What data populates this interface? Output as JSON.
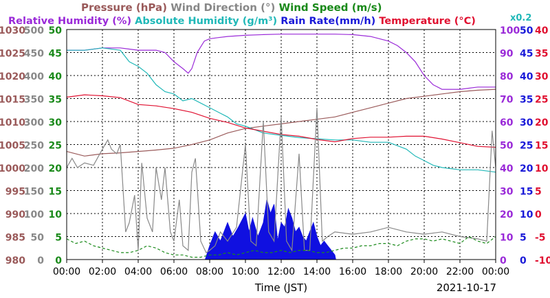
{
  "chart_data": {
    "type": "line",
    "date": "2021-10-17",
    "xlabel": "Time (JST)",
    "x_ticks": [
      "00:00",
      "02:00",
      "04:00",
      "06:00",
      "08:00",
      "10:00",
      "12:00",
      "14:00",
      "16:00",
      "18:00",
      "20:00",
      "22:00",
      "00:00"
    ],
    "grid": true,
    "header_row1": [
      {
        "text": "Pressure (hPa)",
        "color": "#9a5a5a"
      },
      {
        "text": "Wind Direction (°)",
        "color": "#888888"
      },
      {
        "text": "Wind Speed (m/s)",
        "color": "#1a8a1a"
      }
    ],
    "header_row2": [
      {
        "text": "Relative Humidity (%)",
        "color": "#9a2ad8"
      },
      {
        "text": "Absolute Humidity (g/m³)",
        "color": "#20b8b8"
      },
      {
        "text": "Rain Rate(mm/h)",
        "color": "#1a1ad8"
      },
      {
        "text": "Temperature (°C)",
        "color": "#e01030"
      },
      {
        "text": "x0.2",
        "color": "#20b8b8"
      }
    ],
    "axes": {
      "pressure": {
        "ticks": [
          "1030",
          "1025",
          "1020",
          "1015",
          "1010",
          "1005",
          "1000",
          "995",
          "990",
          "985",
          "980"
        ],
        "color": "#9a5a5a",
        "range": [
          980,
          1030
        ]
      },
      "wind_direction": {
        "ticks": [
          "500",
          "450",
          "400",
          "350",
          "300",
          "250",
          "200",
          "150",
          "100",
          "50",
          "0"
        ],
        "color": "#888888",
        "range": [
          0,
          500
        ]
      },
      "wind_speed": {
        "ticks": [
          "50",
          "45",
          "40",
          "35",
          "30",
          "25",
          "20",
          "15",
          "10",
          "5",
          "0"
        ],
        "color": "#1a8a1a",
        "range": [
          0,
          50
        ]
      },
      "humidity": {
        "ticks": [
          "100",
          "90",
          "80",
          "70",
          "60",
          "50",
          "40",
          "30",
          "20",
          "10",
          "0"
        ],
        "color": "#9a2ad8",
        "range": [
          0,
          100
        ]
      },
      "rain": {
        "ticks": [
          "50",
          "45",
          "40",
          "35",
          "30",
          "25",
          "20",
          "15",
          "10",
          "5",
          "0"
        ],
        "color": "#1a1ad8",
        "range": [
          0,
          50
        ]
      },
      "temperature": {
        "ticks": [
          "40",
          "35",
          "30",
          "25",
          "20",
          "15",
          "10",
          "5",
          "0",
          "-5",
          "-10"
        ],
        "color": "#e01030",
        "range": [
          -10,
          40
        ]
      }
    },
    "series": [
      {
        "name": "Pressure (hPa)",
        "color": "#9a5a5a",
        "x": [
          0,
          1,
          2,
          3,
          4,
          5,
          6,
          7,
          8,
          9,
          10,
          11,
          12,
          13,
          14,
          15,
          16,
          17,
          18,
          19,
          20,
          21,
          22,
          23,
          24
        ],
        "y": [
          1003.5,
          1002.5,
          1003,
          1003.2,
          1003.5,
          1003.8,
          1004.2,
          1005,
          1006,
          1007.5,
          1008.5,
          1009,
          1009.5,
          1010,
          1010.5,
          1011,
          1012,
          1013,
          1014,
          1015,
          1015.5,
          1016,
          1016.5,
          1016.8,
          1017
        ]
      },
      {
        "name": "Relative Humidity (%)",
        "color": "#9a2ad8",
        "x": [
          0,
          0.5,
          1,
          1.5,
          2,
          2.5,
          3,
          3.5,
          4,
          4.5,
          5,
          5.5,
          6,
          6.5,
          6.8,
          7,
          7.3,
          7.7,
          8,
          8.5,
          9,
          10,
          11,
          12,
          13,
          14,
          15,
          16,
          17,
          18,
          18.5,
          19,
          19.5,
          20,
          20.5,
          21,
          22,
          23,
          24
        ],
        "y": [
          91,
          91,
          91,
          91.5,
          92,
          92,
          92,
          91.5,
          91,
          91,
          91,
          90,
          86,
          83,
          81,
          83,
          90,
          95,
          96,
          96.5,
          97,
          97.5,
          97.8,
          98,
          98,
          98,
          98,
          97.8,
          97,
          95,
          93,
          90,
          86,
          80,
          76,
          74,
          74,
          75,
          75
        ]
      },
      {
        "name": "Absolute Humidity (g/m³)",
        "color": "#20b8b8",
        "x": [
          0,
          1,
          2,
          3,
          3.5,
          4,
          4.5,
          5,
          5.5,
          6,
          6.5,
          7,
          7.5,
          8,
          8.5,
          9,
          9.5,
          10,
          11,
          12,
          13,
          14,
          15,
          16,
          17,
          18,
          19,
          19.5,
          20,
          20.5,
          21,
          22,
          23,
          24
        ],
        "y": [
          9.1,
          9.1,
          9.2,
          9.1,
          8.6,
          8.4,
          8.1,
          7.6,
          7.3,
          7.2,
          6.9,
          7,
          6.8,
          6.6,
          6.4,
          6.2,
          5.9,
          5.8,
          5.5,
          5.4,
          5.3,
          5.25,
          5.2,
          5.2,
          5.1,
          5.1,
          4.8,
          4.5,
          4.3,
          4.1,
          4.0,
          3.9,
          3.9,
          3.8
        ]
      },
      {
        "name": "Temperature (°C)",
        "color": "#e01030",
        "x": [
          0,
          1,
          2,
          3,
          4,
          5,
          6,
          7,
          8,
          9,
          10,
          11,
          12,
          13,
          14,
          15,
          16,
          17,
          18,
          19,
          20,
          21,
          22,
          23,
          24
        ],
        "y": [
          25.3,
          25.8,
          25.6,
          25.2,
          23.7,
          23.4,
          22.8,
          22,
          20.7,
          19.8,
          18.6,
          17.9,
          17.2,
          16.8,
          16.1,
          15.6,
          16.3,
          16.6,
          16.6,
          16.8,
          16.8,
          16.2,
          15.4,
          14.6,
          14.4
        ]
      },
      {
        "name": "Wind Direction (°)",
        "color": "#888888",
        "x": [
          0,
          0.3,
          0.6,
          1,
          1.5,
          2,
          2.3,
          2.5,
          2.8,
          3,
          3.3,
          3.5,
          3.8,
          4,
          4.2,
          4.5,
          4.8,
          5,
          5.3,
          5.5,
          5.8,
          6,
          6.3,
          6.5,
          6.8,
          7,
          7.2,
          7.5,
          7.8,
          8,
          8.3,
          8.6,
          9,
          9.5,
          10,
          10.3,
          10.6,
          11,
          11.3,
          11.6,
          12,
          12.3,
          12.6,
          13,
          13.3,
          13.6,
          14,
          14.3,
          14.6,
          15,
          16,
          17,
          18,
          19,
          20,
          21,
          22,
          23,
          23.5,
          23.8,
          24
        ],
        "y": [
          200,
          220,
          200,
          210,
          205,
          240,
          260,
          240,
          230,
          250,
          60,
          80,
          140,
          20,
          210,
          90,
          60,
          200,
          130,
          200,
          60,
          40,
          130,
          30,
          20,
          190,
          220,
          40,
          15,
          20,
          30,
          60,
          40,
          70,
          250,
          40,
          30,
          300,
          60,
          40,
          310,
          40,
          20,
          230,
          20,
          20,
          330,
          40,
          50,
          60,
          55,
          60,
          70,
          60,
          55,
          60,
          50,
          45,
          40,
          280,
          200
        ]
      },
      {
        "name": "Wind Speed (m/s)",
        "color": "#1a8a1a",
        "x": [
          0,
          0.5,
          1,
          1.5,
          2,
          2.5,
          3,
          3.5,
          4,
          4.5,
          5,
          5.5,
          6,
          6.5,
          7,
          7.5,
          8,
          8.5,
          9,
          9.5,
          10,
          10.5,
          11,
          11.5,
          12,
          12.5,
          13,
          13.5,
          14,
          14.5,
          15,
          15.5,
          16,
          16.5,
          17,
          17.5,
          18,
          18.5,
          19,
          19.5,
          20,
          20.5,
          21,
          21.5,
          22,
          22.5,
          23,
          23.5,
          24
        ],
        "y": [
          4.5,
          3.5,
          4,
          3,
          2.5,
          2,
          1.5,
          1.5,
          2,
          3,
          2.5,
          1.5,
          1,
          1,
          0.5,
          0.5,
          1,
          1,
          1.5,
          1,
          1.5,
          2,
          1.5,
          1.5,
          2,
          1.5,
          2,
          2,
          1.5,
          1.5,
          2,
          2.5,
          2.5,
          3,
          3,
          3.5,
          3.5,
          3,
          4,
          4.5,
          4.5,
          4,
          4.5,
          4,
          3.5,
          5,
          4,
          3.5,
          5
        ]
      },
      {
        "name": "Rain Rate(mm/h)",
        "color": "#1010e0",
        "x": [
          7.75,
          8,
          8.3,
          8.6,
          9,
          9.3,
          9.6,
          10,
          10.2,
          10.4,
          10.7,
          11,
          11.2,
          11.4,
          11.6,
          11.8,
          12,
          12.2,
          12.4,
          12.6,
          12.8,
          13,
          13.2,
          13.4,
          13.6,
          13.8,
          14,
          14.2,
          14.4,
          14.6,
          14.8,
          15,
          15.05
        ],
        "y": [
          0,
          3,
          6,
          4,
          8,
          5,
          7,
          10,
          6,
          9,
          5,
          8,
          13,
          10,
          12,
          4,
          8,
          7,
          11,
          9,
          6,
          7,
          5,
          4,
          6,
          8,
          5,
          3,
          4,
          3,
          2,
          1,
          0
        ]
      }
    ]
  }
}
